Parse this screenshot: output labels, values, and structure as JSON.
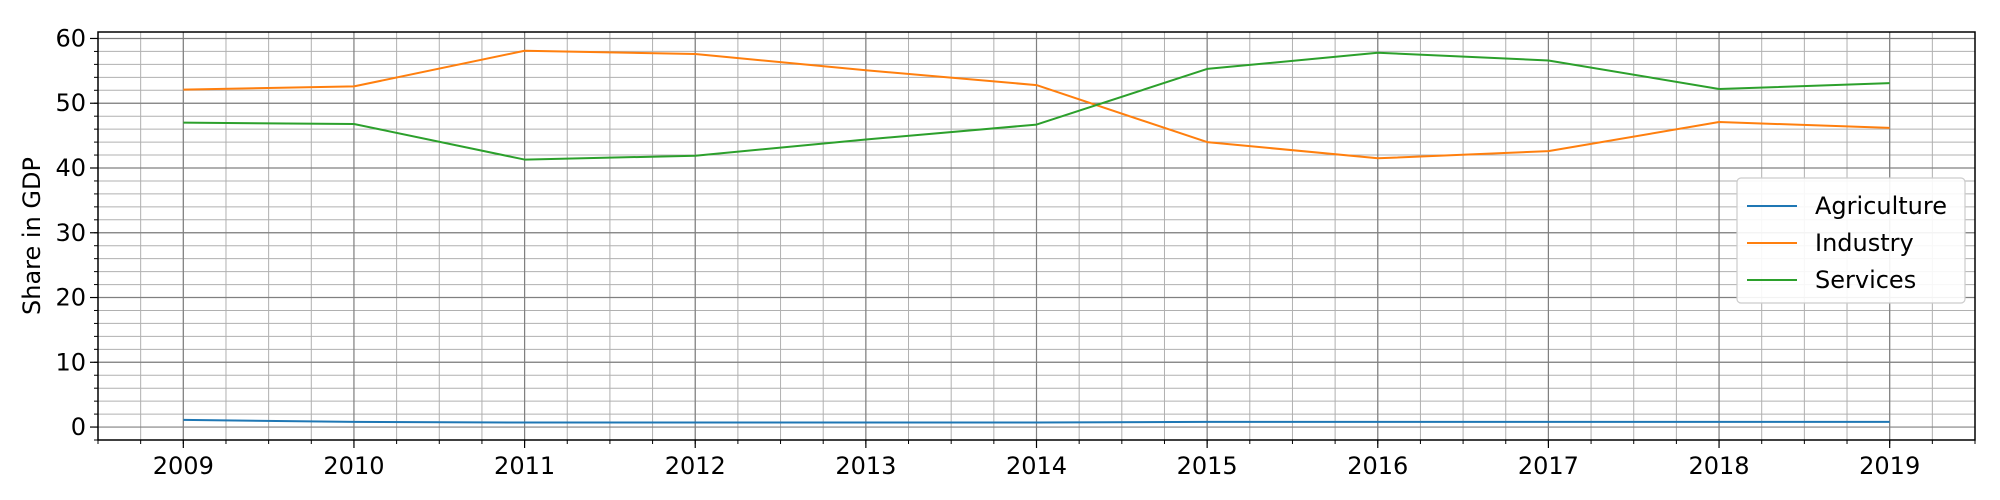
{
  "chart_data": {
    "type": "line",
    "title": "",
    "xlabel": "",
    "ylabel": "Share in GDP",
    "categories": [
      "2009",
      "2010",
      "2011",
      "2012",
      "2013",
      "2014",
      "2015",
      "2016",
      "2017",
      "2018",
      "2019"
    ],
    "xlim": [
      2008.5,
      2019.5
    ],
    "ylim": [
      -2,
      61
    ],
    "yticks": [
      0,
      10,
      20,
      30,
      40,
      50,
      60
    ],
    "grid": true,
    "minor_grid": true,
    "legend_position": "center-right",
    "series": [
      {
        "name": "Agriculture",
        "color": "#1f77b4",
        "values": [
          1.1,
          0.8,
          0.7,
          0.7,
          0.7,
          0.7,
          0.8,
          0.8,
          0.8,
          0.8,
          0.8
        ]
      },
      {
        "name": "Industry",
        "color": "#ff7f0e",
        "values": [
          52.1,
          52.6,
          58.1,
          57.6,
          55.1,
          52.8,
          44.0,
          41.5,
          42.6,
          47.1,
          46.2
        ]
      },
      {
        "name": "Services",
        "color": "#2ca02c",
        "values": [
          47.0,
          46.8,
          41.3,
          41.9,
          44.4,
          46.7,
          55.3,
          57.8,
          56.6,
          52.2,
          53.1
        ]
      }
    ]
  }
}
